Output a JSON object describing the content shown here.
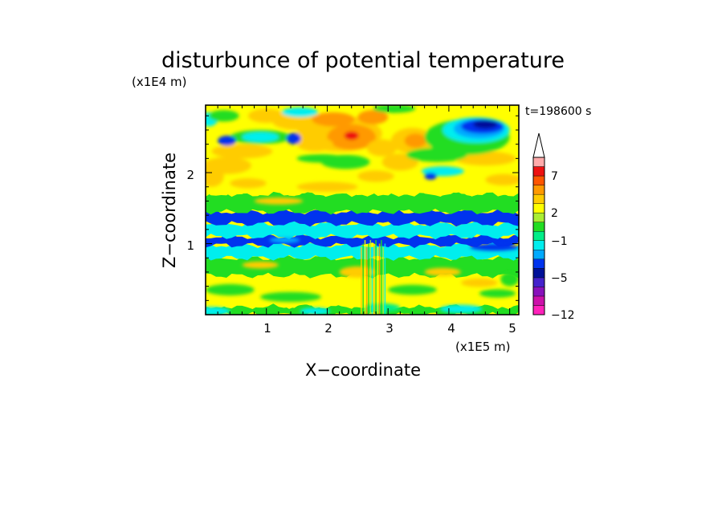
{
  "chart_data": {
    "type": "heatmap",
    "title": "disturbunce of potential temperature",
    "xlabel": "X−coordinate",
    "ylabel": "Z−coordinate",
    "x_unit": "(x1E5 m)",
    "y_unit": "(x1E4 m)",
    "time_label": "t=198600 s",
    "xlim": [
      0,
      5.15
    ],
    "ylim": [
      0,
      2.95
    ],
    "xticks": [
      1,
      2,
      3,
      4,
      5
    ],
    "yticks": [
      1,
      2
    ],
    "colorbar": {
      "tick_labels": [
        "−12",
        "−5",
        "−1",
        "2",
        "7"
      ],
      "tick_values": [
        -12,
        -5,
        -1,
        2,
        7
      ],
      "levels": [
        -12,
        -10,
        -8,
        -6,
        -5,
        -4,
        -3,
        -2,
        -1,
        0,
        1,
        2,
        3,
        4,
        5,
        7,
        9,
        12
      ],
      "colors": [
        "#ff22bb",
        "#cc11aa",
        "#8811bb",
        "#4422cc",
        "#001199",
        "#0033ee",
        "#00aaff",
        "#00eeee",
        "#00ee88",
        "#22dd22",
        "#aaee33",
        "#ffff00",
        "#ffcc00",
        "#ff9900",
        "#ff5500",
        "#ee1111",
        "#ffaaaa"
      ],
      "extend": "max"
    },
    "bands": [
      {
        "z_from": 0.0,
        "z_to": 0.12,
        "level": "green"
      },
      {
        "z_from": 0.12,
        "z_to": 0.55,
        "level": "yellow"
      },
      {
        "z_from": 0.55,
        "z_to": 0.8,
        "level": "green"
      },
      {
        "z_from": 0.8,
        "z_to": 0.98,
        "level": "cyan"
      },
      {
        "z_from": 0.98,
        "z_to": 1.1,
        "level": "blue"
      },
      {
        "z_from": 1.1,
        "z_to": 1.28,
        "level": "cyan"
      },
      {
        "z_from": 1.28,
        "z_to": 1.45,
        "level": "blue"
      },
      {
        "z_from": 1.45,
        "z_to": 1.7,
        "level": "green"
      },
      {
        "z_from": 1.7,
        "z_to": 2.1,
        "level": "yellow"
      },
      {
        "z_from": 2.1,
        "z_to": 2.95,
        "level": "mixed"
      }
    ],
    "features": [
      {
        "x": 2.4,
        "z": 2.5,
        "level": "red",
        "note": "maximum"
      },
      {
        "x": 4.5,
        "z": 2.65,
        "level": "darkblue",
        "note": "minimum"
      }
    ]
  }
}
